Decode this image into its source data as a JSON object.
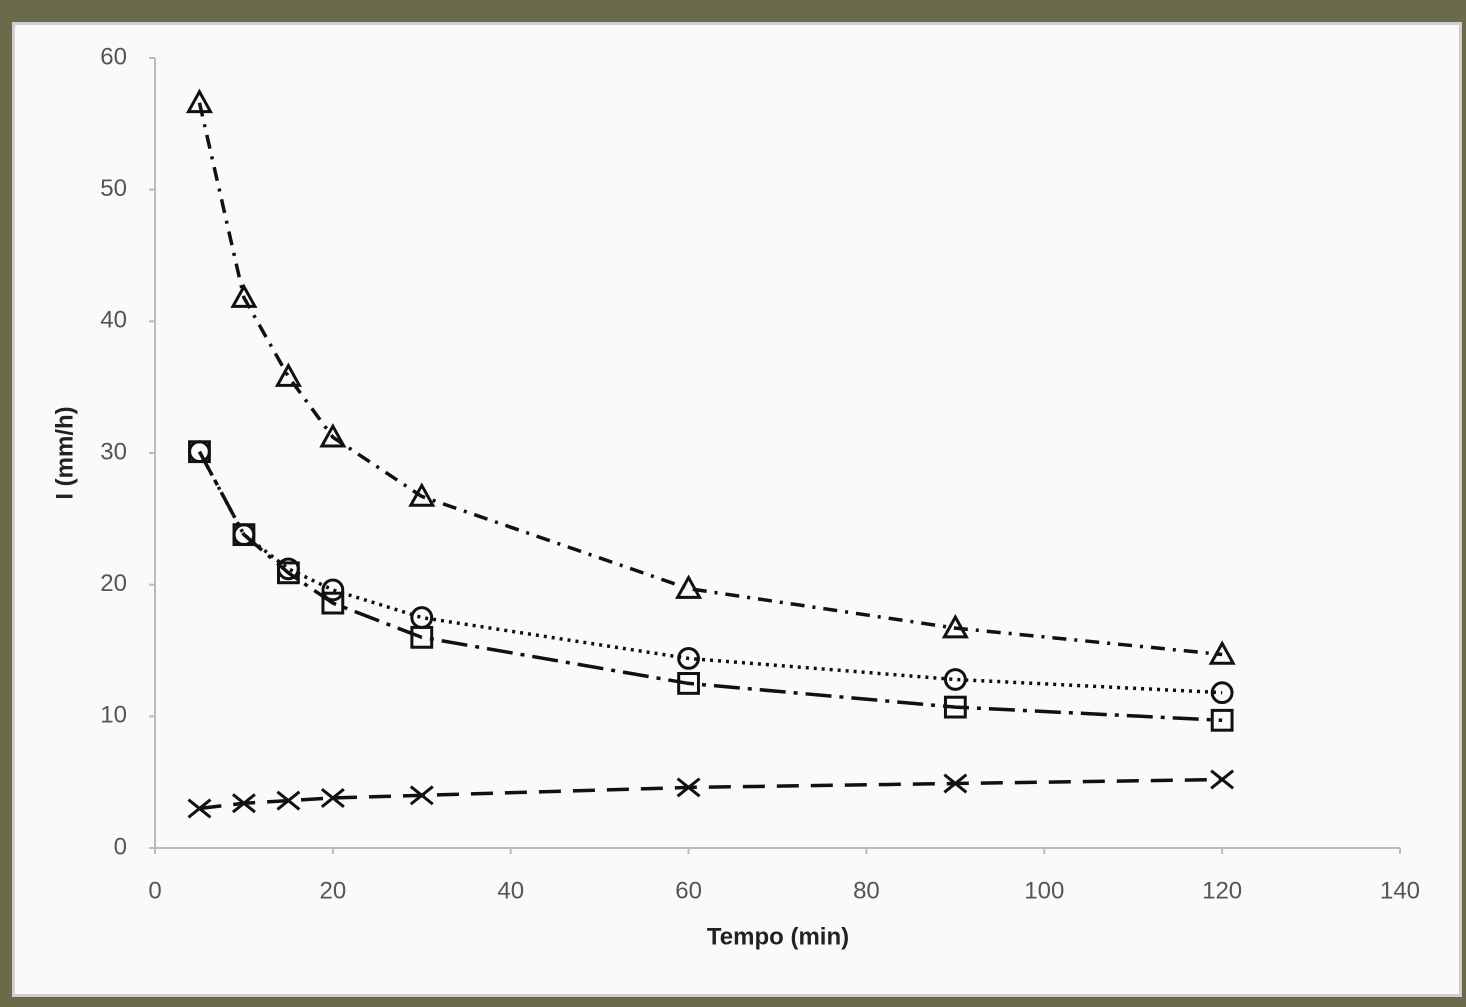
{
  "chart_data": {
    "type": "line",
    "x_label": "Tempo (min)",
    "y_label": "I (mm/h)",
    "x": [
      5,
      10,
      15,
      20,
      30,
      60,
      90,
      120
    ],
    "xlim": [
      0,
      140
    ],
    "xticks": [
      0,
      20,
      40,
      60,
      80,
      100,
      120,
      140
    ],
    "ylim": [
      0,
      60
    ],
    "yticks": [
      0,
      10,
      20,
      30,
      40,
      50,
      60
    ],
    "grid": false,
    "series": [
      {
        "marker": "triangle",
        "dash": "14 8 3 8",
        "color": "#111111",
        "values": [
          56.6,
          41.8,
          35.8,
          31.2,
          26.7,
          19.7,
          16.7,
          14.7
        ]
      },
      {
        "marker": "circle",
        "dash": "3 5",
        "color": "#111111",
        "values": [
          30.1,
          23.8,
          21.2,
          19.6,
          17.5,
          14.4,
          12.8,
          11.8
        ]
      },
      {
        "marker": "square",
        "dash": "26 8 4 8",
        "color": "#111111",
        "values": [
          30.1,
          23.8,
          20.9,
          18.6,
          16.0,
          12.5,
          10.7,
          9.7
        ]
      },
      {
        "marker": "x",
        "dash": "22 12",
        "color": "#111111",
        "values": [
          3.0,
          3.4,
          3.6,
          3.8,
          4.0,
          4.6,
          4.9,
          5.2
        ]
      }
    ]
  }
}
